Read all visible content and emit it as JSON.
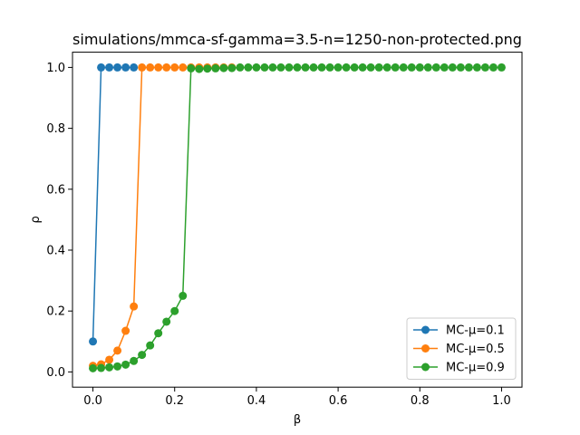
{
  "chart_data": {
    "type": "line",
    "title": "simulations/mmca-sf-gamma=3.5-n=1250-non-protected.png",
    "xlabel": "β",
    "ylabel": "ρ",
    "xlim": [
      -0.05,
      1.05
    ],
    "ylim": [
      -0.05,
      1.05
    ],
    "xticks": [
      0.0,
      0.2,
      0.4,
      0.6,
      0.8,
      1.0
    ],
    "xtick_labels": [
      "0.0",
      "0.2",
      "0.4",
      "0.6",
      "0.8",
      "1.0"
    ],
    "yticks": [
      0.0,
      0.2,
      0.4,
      0.6,
      0.8,
      1.0
    ],
    "ytick_labels": [
      "0.0",
      "0.2",
      "0.4",
      "0.6",
      "0.8",
      "1.0"
    ],
    "grid": false,
    "legend": "lower-right",
    "x": [
      0.0,
      0.02,
      0.04,
      0.06,
      0.08,
      0.1,
      0.12,
      0.14,
      0.16,
      0.18,
      0.2,
      0.22,
      0.24,
      0.26,
      0.28,
      0.3,
      0.32,
      0.34,
      0.36,
      0.38,
      0.4,
      0.42,
      0.44,
      0.46,
      0.48,
      0.5,
      0.52,
      0.54,
      0.56,
      0.58,
      0.6,
      0.62,
      0.64,
      0.66,
      0.68,
      0.7,
      0.72,
      0.74,
      0.76,
      0.78,
      0.8,
      0.82,
      0.84,
      0.86,
      0.88,
      0.9,
      0.92,
      0.94,
      0.96,
      0.98,
      1.0
    ],
    "series": [
      {
        "name": "MC-μ=0.1",
        "color": "#1f77b4",
        "x": [
          0.0,
          0.02,
          0.04,
          0.06,
          0.08,
          0.1
        ],
        "values": [
          0.1,
          1.0,
          1.0,
          1.0,
          1.0,
          1.0
        ]
      },
      {
        "name": "MC-μ=0.5",
        "color": "#ff7f0e",
        "x": [
          0.0,
          0.02,
          0.04,
          0.06,
          0.08,
          0.1,
          0.12,
          0.14,
          0.16,
          0.18,
          0.2,
          0.22,
          0.24,
          0.26,
          0.28,
          0.3,
          0.32,
          0.34
        ],
        "values": [
          0.02,
          0.025,
          0.04,
          0.07,
          0.135,
          0.215,
          1.0,
          1.0,
          1.0,
          1.0,
          1.0,
          1.0,
          1.0,
          1.0,
          1.0,
          1.0,
          1.0,
          1.0
        ]
      },
      {
        "name": "MC-μ=0.9",
        "color": "#2ca02c",
        "x": [
          0.0,
          0.02,
          0.04,
          0.06,
          0.08,
          0.1,
          0.12,
          0.14,
          0.16,
          0.18,
          0.2,
          0.22,
          0.24,
          0.26,
          0.28,
          0.3,
          0.32,
          0.34,
          0.36,
          0.38,
          0.4,
          0.42,
          0.44,
          0.46,
          0.48,
          0.5,
          0.52,
          0.54,
          0.56,
          0.58,
          0.6,
          0.62,
          0.64,
          0.66,
          0.68,
          0.7,
          0.72,
          0.74,
          0.76,
          0.78,
          0.8,
          0.82,
          0.84,
          0.86,
          0.88,
          0.9,
          0.92,
          0.94,
          0.96,
          0.98,
          1.0
        ],
        "values": [
          0.012,
          0.013,
          0.015,
          0.018,
          0.024,
          0.036,
          0.056,
          0.087,
          0.127,
          0.165,
          0.2,
          0.25,
          0.997,
          0.995,
          0.996,
          0.997,
          0.998,
          0.998,
          1.0,
          1.0,
          1.0,
          1.0,
          1.0,
          1.0,
          1.0,
          1.0,
          1.0,
          1.0,
          1.0,
          1.0,
          1.0,
          1.0,
          1.0,
          1.0,
          1.0,
          1.0,
          1.0,
          1.0,
          1.0,
          1.0,
          1.0,
          1.0,
          1.0,
          1.0,
          1.0,
          1.0,
          1.0,
          1.0,
          1.0,
          1.0,
          1.0
        ]
      }
    ]
  }
}
